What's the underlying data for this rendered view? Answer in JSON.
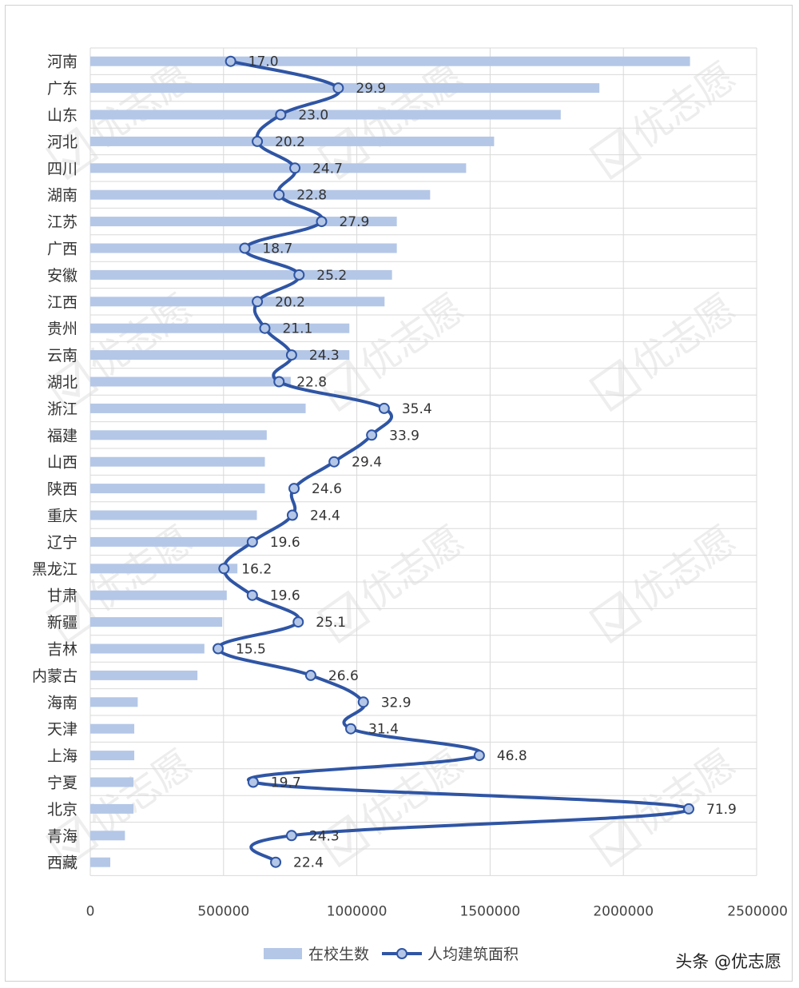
{
  "chart_data": {
    "type": "bar",
    "orientation": "horizontal",
    "categories": [
      "河南",
      "广东",
      "山东",
      "河北",
      "四川",
      "湖南",
      "江苏",
      "广西",
      "安徽",
      "江西",
      "贵州",
      "云南",
      "湖北",
      "浙江",
      "福建",
      "山西",
      "陕西",
      "重庆",
      "辽宁",
      "黑龙江",
      "甘肃",
      "新疆",
      "吉林",
      "内蒙古",
      "海南",
      "天津",
      "上海",
      "宁夏",
      "北京",
      "青海",
      "西藏"
    ],
    "series": [
      {
        "name": "在校生数",
        "type": "bar",
        "color": "#b4c7e7",
        "values": [
          2250000,
          1910000,
          1765000,
          1515000,
          1410000,
          1275000,
          1150000,
          1150000,
          1132000,
          1104000,
          972000,
          972000,
          752000,
          808000,
          662000,
          655000,
          655000,
          625000,
          612000,
          552000,
          512000,
          495000,
          428000,
          402000,
          178000,
          165000,
          165000,
          162000,
          162000,
          130000,
          75000
        ]
      },
      {
        "name": "人均建筑面积",
        "type": "line",
        "color": "#2f55a4",
        "values": [
          17.0,
          29.9,
          23.0,
          20.2,
          24.7,
          22.8,
          27.9,
          18.7,
          25.2,
          20.2,
          21.1,
          24.3,
          22.8,
          35.4,
          33.9,
          29.4,
          24.6,
          24.4,
          19.6,
          16.2,
          19.6,
          25.1,
          15.5,
          26.6,
          32.9,
          31.4,
          46.8,
          19.7,
          71.9,
          24.3,
          22.4
        ],
        "labels": [
          "17.0",
          "29.9",
          "23.0",
          "20.2",
          "24.7",
          "22.8",
          "27.9",
          "18.7",
          "25.2",
          "20.2",
          "21.1",
          "24.3",
          "22.8",
          "35.4",
          "33.9",
          "29.4",
          "24.6",
          "24.4",
          "19.6",
          "16.2",
          "19.6",
          "25.1",
          "15.5",
          "26.6",
          "32.9",
          "31.4",
          "46.8",
          "19.7",
          "71.9",
          "24.3",
          "22.4"
        ]
      }
    ],
    "xaxis": {
      "range": [
        0,
        2500000
      ],
      "ticks": [
        0,
        500000,
        1000000,
        1500000,
        2000000,
        2500000
      ],
      "tick_labels": [
        "0",
        "500000",
        "1000000",
        "1500000",
        "2000000",
        "2500000"
      ],
      "gridlines": true
    },
    "legend": {
      "position": "bottom"
    }
  },
  "credit": "头条 @优志愿",
  "watermark_text": "优志愿"
}
